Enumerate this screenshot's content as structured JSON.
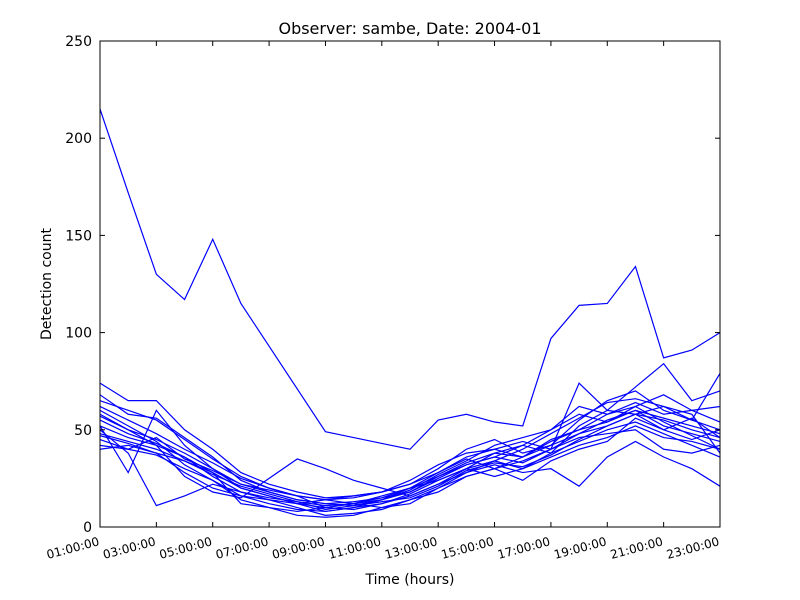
{
  "chart_data": {
    "type": "line",
    "title": "Observer: sambe, Date: 2004-01",
    "xlabel": "Time (hours)",
    "ylabel": "Detection count",
    "x": [
      1,
      2,
      3,
      4,
      5,
      6,
      7,
      8,
      9,
      10,
      11,
      12,
      13,
      14,
      15,
      16,
      17,
      18,
      19,
      20,
      21,
      22,
      23
    ],
    "xlim": [
      1,
      23
    ],
    "xticks": [
      {
        "value": 1,
        "label": "01:00:00"
      },
      {
        "value": 3,
        "label": "03:00:00"
      },
      {
        "value": 5,
        "label": "05:00:00"
      },
      {
        "value": 7,
        "label": "07:00:00"
      },
      {
        "value": 9,
        "label": "09:00:00"
      },
      {
        "value": 11,
        "label": "11:00:00"
      },
      {
        "value": 13,
        "label": "13:00:00"
      },
      {
        "value": 15,
        "label": "15:00:00"
      },
      {
        "value": 17,
        "label": "17:00:00"
      },
      {
        "value": 19,
        "label": "19:00:00"
      },
      {
        "value": 21,
        "label": "21:00:00"
      },
      {
        "value": 23,
        "label": "23:00:00"
      }
    ],
    "ylim": [
      0,
      250
    ],
    "yticks": [
      0,
      50,
      100,
      150,
      200,
      250
    ],
    "series": [
      {
        "color": "#0000ff",
        "values": [
          215,
          172,
          130,
          117,
          148,
          115,
          93,
          71,
          49,
          46,
          43,
          40,
          55,
          58,
          54,
          52,
          97,
          114,
          115,
          134,
          87,
          91,
          100
        ]
      },
      {
        "color": "#0000ff",
        "values": [
          57,
          50,
          45,
          38,
          30,
          22,
          18,
          14,
          12,
          13,
          15,
          18,
          25,
          32,
          36,
          33,
          40,
          48,
          55,
          60,
          52,
          48,
          44
        ]
      },
      {
        "color": "#0000ff",
        "values": [
          62,
          55,
          48,
          40,
          33,
          25,
          20,
          16,
          10,
          9,
          12,
          16,
          22,
          30,
          38,
          42,
          38,
          52,
          60,
          58,
          55,
          50,
          46
        ]
      },
      {
        "color": "#0000ff",
        "values": [
          48,
          44,
          40,
          34,
          28,
          20,
          16,
          12,
          8,
          10,
          14,
          20,
          28,
          35,
          30,
          36,
          45,
          50,
          58,
          62,
          54,
          47,
          40
        ]
      },
      {
        "color": "#0000ff",
        "values": [
          74,
          65,
          65,
          50,
          40,
          28,
          22,
          18,
          15,
          16,
          18,
          22,
          30,
          40,
          45,
          38,
          42,
          55,
          65,
          70,
          60,
          55,
          50
        ]
      },
      {
        "color": "#0000ff",
        "values": [
          52,
          46,
          42,
          36,
          26,
          18,
          14,
          10,
          6,
          7,
          9,
          14,
          20,
          28,
          34,
          40,
          48,
          56,
          64,
          66,
          62,
          58,
          38
        ]
      },
      {
        "color": "#0000ff",
        "values": [
          45,
          40,
          37,
          30,
          24,
          16,
          12,
          9,
          8,
          10,
          12,
          17,
          24,
          30,
          26,
          30,
          38,
          44,
          50,
          54,
          48,
          42,
          36
        ]
      },
      {
        "color": "#0000ff",
        "values": [
          60,
          52,
          44,
          32,
          24,
          14,
          10,
          8,
          10,
          12,
          16,
          20,
          26,
          33,
          38,
          36,
          44,
          50,
          54,
          60,
          56,
          52,
          48
        ]
      },
      {
        "color": "#0000ff",
        "values": [
          40,
          42,
          38,
          28,
          20,
          16,
          14,
          12,
          14,
          16,
          18,
          22,
          28,
          36,
          40,
          44,
          40,
          46,
          48,
          50,
          40,
          38,
          42
        ]
      },
      {
        "color": "#0000ff",
        "values": [
          68,
          58,
          56,
          46,
          36,
          24,
          18,
          14,
          12,
          11,
          14,
          19,
          27,
          34,
          42,
          46,
          50,
          62,
          58,
          64,
          58,
          60,
          62
        ]
      },
      {
        "color": "#0000ff",
        "values": [
          50,
          38,
          11,
          16,
          22,
          18,
          15,
          13,
          11,
          12,
          15,
          20,
          24,
          30,
          34,
          30,
          36,
          42,
          46,
          52,
          46,
          44,
          40
        ]
      },
      {
        "color": "#0000ff",
        "values": [
          55,
          48,
          43,
          36,
          28,
          12,
          10,
          6,
          5,
          6,
          10,
          14,
          18,
          26,
          30,
          24,
          34,
          40,
          44,
          56,
          50,
          45,
          50
        ]
      },
      {
        "color": "#0000ff",
        "values": [
          42,
          40,
          46,
          35,
          29,
          22,
          19,
          16,
          14,
          15,
          18,
          24,
          32,
          38,
          40,
          36,
          42,
          48,
          52,
          58,
          62,
          55,
          79
        ]
      },
      {
        "color": "#0000ff",
        "values": [
          58,
          50,
          42,
          26,
          18,
          15,
          25,
          35,
          30,
          24,
          20,
          16,
          22,
          28,
          32,
          28,
          30,
          21,
          36,
          44,
          36,
          30,
          21
        ]
      },
      {
        "color": "#0000ff",
        "values": [
          47,
          43,
          38,
          34,
          27,
          21,
          17,
          13,
          9,
          11,
          13,
          15,
          21,
          29,
          33,
          31,
          37,
          45,
          52,
          58,
          50,
          56,
          46
        ]
      },
      {
        "color": "#0000ff",
        "values": [
          65,
          60,
          55,
          45,
          35,
          26,
          20,
          16,
          14,
          12,
          10,
          12,
          20,
          26,
          30,
          34,
          40,
          74,
          60,
          72,
          84,
          65,
          70
        ]
      },
      {
        "color": "#0000ff",
        "values": [
          52,
          28,
          60,
          42,
          30,
          20,
          16,
          12,
          10,
          12,
          14,
          18,
          26,
          32,
          36,
          42,
          50,
          58,
          54,
          62,
          68,
          60,
          54
        ]
      }
    ]
  }
}
